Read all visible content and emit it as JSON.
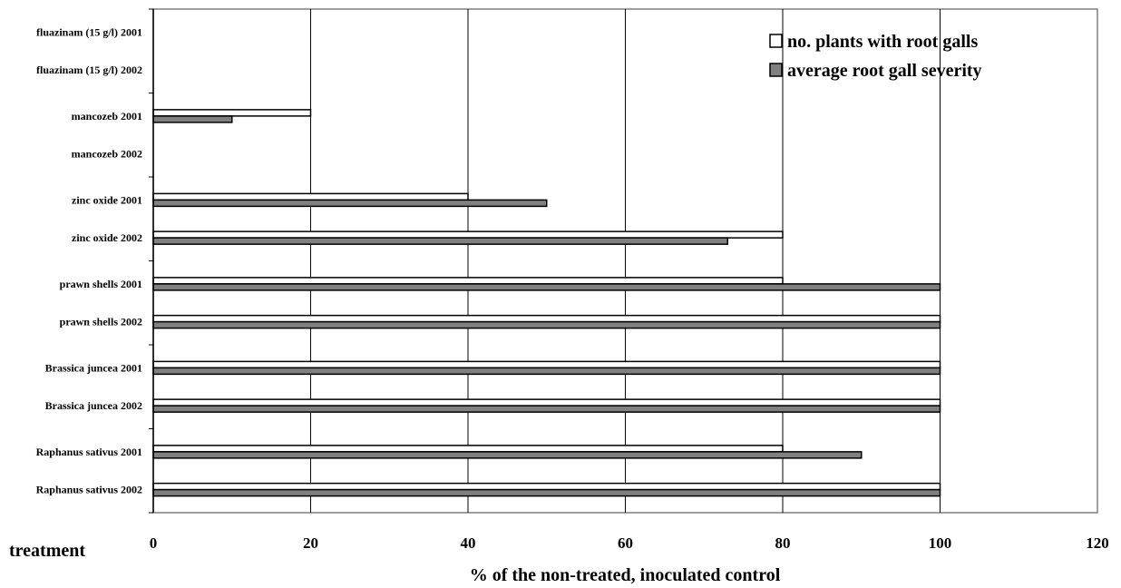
{
  "chart_data": {
    "type": "bar",
    "orientation": "horizontal",
    "categories": [
      "fluazinam (15 g/l) 2001",
      "fluazinam (15 g/l) 2002",
      "mancozeb 2001",
      "mancozeb 2002",
      "zinc oxide 2001",
      "zinc oxide 2002",
      "prawn shells 2001",
      "prawn shells 2002",
      "Brassica juncea 2001",
      "Brassica juncea 2002",
      "Raphanus sativus 2001",
      "Raphanus sativus 2002"
    ],
    "series": [
      {
        "name": "no. plants with root galls",
        "color": "#ffffff",
        "values": [
          0,
          0,
          20,
          0,
          40,
          80,
          80,
          100,
          100,
          100,
          80,
          100
        ]
      },
      {
        "name": "average root gall severity",
        "color": "#808080",
        "values": [
          0,
          0,
          10,
          0,
          50,
          73,
          100,
          100,
          100,
          100,
          90,
          100
        ]
      }
    ],
    "xlabel": "% of the non-treated, inoculated control",
    "ylabel": "treatment",
    "xlim": [
      0,
      120
    ],
    "xticks": [
      "0",
      "20",
      "40",
      "60",
      "80",
      "100",
      "120"
    ],
    "grid": true,
    "legend_position": "top-right"
  }
}
